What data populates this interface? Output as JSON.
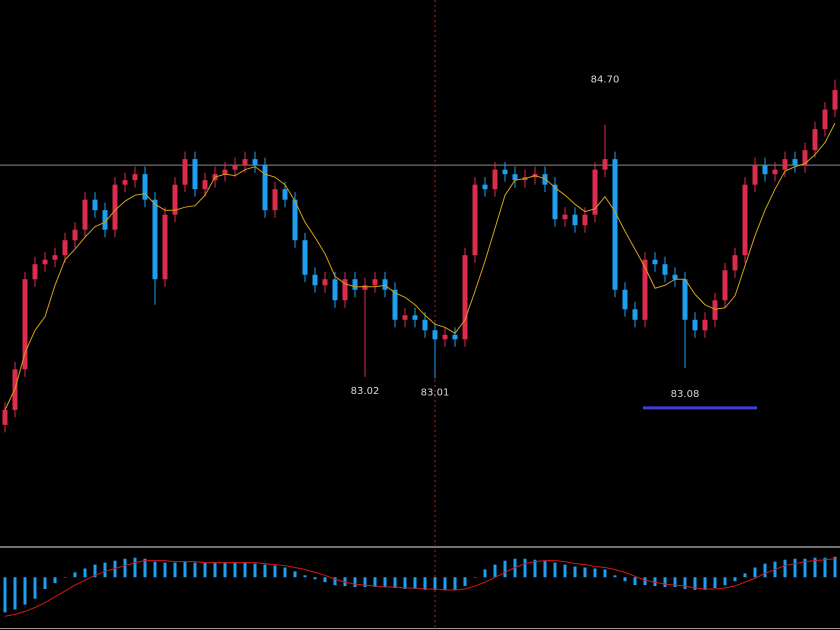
{
  "chart_data": {
    "type": "candlestick",
    "up_color": "#dc2d4f",
    "down_color": "#1e9ff2",
    "ma_color": "#d4a017",
    "ylim": [
      81.9,
      85.53
    ],
    "price_line": 84.43,
    "cursor_index": 43,
    "support_level": 83.08,
    "support_color": "#3f3fd8",
    "open": [
      82.7,
      82.8,
      83.07,
      83.67,
      83.77,
      83.8,
      83.83,
      83.93,
      84.0,
      84.2,
      84.13,
      84.0,
      84.3,
      84.33,
      84.37,
      84.2,
      83.67,
      84.1,
      84.3,
      84.47,
      84.27,
      84.33,
      84.37,
      84.4,
      84.43,
      84.47,
      84.43,
      84.13,
      84.27,
      84.2,
      83.93,
      83.7,
      83.63,
      83.67,
      83.53,
      83.67,
      83.6,
      83.63,
      83.67,
      83.6,
      83.4,
      83.43,
      83.4,
      83.33,
      83.27,
      83.3,
      83.27,
      83.83,
      84.3,
      84.27,
      84.4,
      84.37,
      84.33,
      84.35,
      84.37,
      84.3,
      84.07,
      84.1,
      84.03,
      84.1,
      84.4,
      84.47,
      83.6,
      83.47,
      83.4,
      83.8,
      83.77,
      83.7,
      83.67,
      83.4,
      83.33,
      83.4,
      83.53,
      83.73,
      83.83,
      84.3,
      84.43,
      84.37,
      84.4,
      84.47,
      84.43,
      84.53,
      84.67,
      84.8
    ],
    "high": [
      82.85,
      83.12,
      83.72,
      83.82,
      83.85,
      83.88,
      83.98,
      84.05,
      84.25,
      84.25,
      84.18,
      84.35,
      84.38,
      84.42,
      84.42,
      84.25,
      84.15,
      84.35,
      84.52,
      84.52,
      84.38,
      84.42,
      84.45,
      84.48,
      84.52,
      84.52,
      84.48,
      84.32,
      84.32,
      84.25,
      83.98,
      83.75,
      83.72,
      83.72,
      83.72,
      83.72,
      83.68,
      83.72,
      83.72,
      83.65,
      83.48,
      83.48,
      83.45,
      83.38,
      83.35,
      83.35,
      83.88,
      84.35,
      84.35,
      84.45,
      84.45,
      84.42,
      84.4,
      84.42,
      84.42,
      84.35,
      84.15,
      84.15,
      84.15,
      84.45,
      84.7,
      84.52,
      83.65,
      83.52,
      83.85,
      83.85,
      83.82,
      83.75,
      83.72,
      83.45,
      83.45,
      83.58,
      83.78,
      83.88,
      84.35,
      84.48,
      84.48,
      84.45,
      84.52,
      84.52,
      84.58,
      84.72,
      84.85,
      85.0
    ],
    "low": [
      82.65,
      82.75,
      83.02,
      83.62,
      83.72,
      83.75,
      83.78,
      83.88,
      83.95,
      84.08,
      83.95,
      83.95,
      84.25,
      84.28,
      84.15,
      83.5,
      83.62,
      84.05,
      84.25,
      84.22,
      84.22,
      84.28,
      84.32,
      84.35,
      84.38,
      84.38,
      84.08,
      84.08,
      84.15,
      83.88,
      83.65,
      83.58,
      83.58,
      83.48,
      83.48,
      83.55,
      83.02,
      83.58,
      83.55,
      83.35,
      83.35,
      83.35,
      83.28,
      83.01,
      83.22,
      83.22,
      83.22,
      83.78,
      84.22,
      84.22,
      84.32,
      84.28,
      84.28,
      84.3,
      84.25,
      84.02,
      84.02,
      83.98,
      83.98,
      84.05,
      84.35,
      83.55,
      83.42,
      83.35,
      83.35,
      83.72,
      83.65,
      83.62,
      83.08,
      83.28,
      83.28,
      83.35,
      83.48,
      83.68,
      83.78,
      84.25,
      84.32,
      84.32,
      84.35,
      84.38,
      84.38,
      84.48,
      84.62,
      84.75
    ],
    "close": [
      82.8,
      83.07,
      83.67,
      83.77,
      83.8,
      83.83,
      83.93,
      84.0,
      84.2,
      84.13,
      84.0,
      84.3,
      84.33,
      84.37,
      84.2,
      83.67,
      84.1,
      84.3,
      84.47,
      84.27,
      84.33,
      84.37,
      84.4,
      84.43,
      84.47,
      84.43,
      84.13,
      84.27,
      84.2,
      83.93,
      83.7,
      83.63,
      83.67,
      83.53,
      83.67,
      83.6,
      83.63,
      83.67,
      83.6,
      83.4,
      83.43,
      83.4,
      83.33,
      83.27,
      83.3,
      83.27,
      83.83,
      84.3,
      84.27,
      84.4,
      84.37,
      84.33,
      84.35,
      84.37,
      84.3,
      84.07,
      84.1,
      84.03,
      84.1,
      84.4,
      84.47,
      83.6,
      83.47,
      83.4,
      83.8,
      83.77,
      83.7,
      83.67,
      83.4,
      83.33,
      83.4,
      83.53,
      83.73,
      83.83,
      84.3,
      84.43,
      84.37,
      84.4,
      84.47,
      84.43,
      84.53,
      84.67,
      84.8,
      84.93
    ],
    "ma": [
      82.8,
      82.94,
      83.18,
      83.33,
      83.42,
      83.63,
      83.8,
      83.87,
      83.95,
      84.02,
      84.05,
      84.13,
      84.19,
      84.23,
      84.24,
      84.17,
      84.13,
      84.13,
      84.15,
      84.16,
      84.23,
      84.35,
      84.37,
      84.36,
      84.4,
      84.42,
      84.37,
      84.35,
      84.3,
      84.19,
      84.05,
      83.95,
      83.84,
      83.69,
      83.64,
      83.62,
      83.62,
      83.62,
      83.63,
      83.58,
      83.55,
      83.5,
      83.43,
      83.37,
      83.35,
      83.31,
      83.4,
      83.59,
      83.79,
      84.01,
      84.23,
      84.33,
      84.34,
      84.36,
      84.34,
      84.28,
      84.23,
      84.17,
      84.12,
      84.14,
      84.22,
      84.12,
      83.99,
      83.87,
      83.75,
      83.61,
      83.63,
      83.67,
      83.67,
      83.57,
      83.5,
      83.47,
      83.48,
      83.56,
      83.76,
      83.96,
      84.13,
      84.27,
      84.39,
      84.42,
      84.44,
      84.5,
      84.58,
      84.71
    ],
    "annotations": [
      {
        "index": 60,
        "value": 84.7,
        "label": "84.70",
        "position": "above"
      },
      {
        "index": 36,
        "value": 83.02,
        "label": "83.02",
        "position": "below"
      },
      {
        "index": 43,
        "value": 83.01,
        "label": "83.01",
        "position": "below"
      },
      {
        "index": 68,
        "value": 83.08,
        "label": "83.08",
        "position": "below"
      }
    ],
    "macd": {
      "ylim": [
        -0.52,
        0.3
      ],
      "hist_color": "#1e9ff2",
      "signal_color": "#d01818",
      "values": [
        -0.36,
        -0.33,
        -0.28,
        -0.22,
        -0.12,
        -0.06,
        0.0,
        0.05,
        0.09,
        0.13,
        0.15,
        0.17,
        0.19,
        0.2,
        0.19,
        0.16,
        0.15,
        0.15,
        0.16,
        0.15,
        0.15,
        0.15,
        0.15,
        0.15,
        0.15,
        0.14,
        0.13,
        0.12,
        0.1,
        0.06,
        0.02,
        -0.02,
        -0.05,
        -0.08,
        -0.09,
        -0.1,
        -0.1,
        -0.1,
        -0.1,
        -0.11,
        -0.12,
        -0.12,
        -0.13,
        -0.13,
        -0.13,
        -0.13,
        -0.09,
        0.0,
        0.08,
        0.13,
        0.17,
        0.19,
        0.19,
        0.18,
        0.17,
        0.15,
        0.13,
        0.11,
        0.1,
        0.09,
        0.08,
        0.02,
        -0.04,
        -0.08,
        -0.08,
        -0.09,
        -0.1,
        -0.1,
        -0.12,
        -0.13,
        -0.13,
        -0.11,
        -0.08,
        -0.04,
        0.04,
        0.1,
        0.14,
        0.16,
        0.18,
        0.19,
        0.19,
        0.2,
        0.2,
        0.21
      ],
      "signal": [
        -0.4,
        -0.38,
        -0.35,
        -0.31,
        -0.26,
        -0.2,
        -0.14,
        -0.08,
        -0.03,
        0.02,
        0.06,
        0.09,
        0.12,
        0.15,
        0.17,
        0.17,
        0.17,
        0.16,
        0.16,
        0.16,
        0.15,
        0.15,
        0.15,
        0.15,
        0.15,
        0.15,
        0.14,
        0.13,
        0.12,
        0.1,
        0.08,
        0.05,
        0.02,
        -0.02,
        -0.05,
        -0.07,
        -0.08,
        -0.09,
        -0.1,
        -0.1,
        -0.11,
        -0.11,
        -0.12,
        -0.12,
        -0.13,
        -0.13,
        -0.12,
        -0.09,
        -0.05,
        0.0,
        0.05,
        0.1,
        0.14,
        0.16,
        0.17,
        0.17,
        0.16,
        0.14,
        0.13,
        0.11,
        0.1,
        0.08,
        0.05,
        0.01,
        -0.03,
        -0.05,
        -0.07,
        -0.08,
        -0.09,
        -0.11,
        -0.12,
        -0.12,
        -0.11,
        -0.09,
        -0.05,
        -0.01,
        0.04,
        0.08,
        0.12,
        0.14,
        0.16,
        0.17,
        0.18,
        0.19
      ]
    }
  }
}
